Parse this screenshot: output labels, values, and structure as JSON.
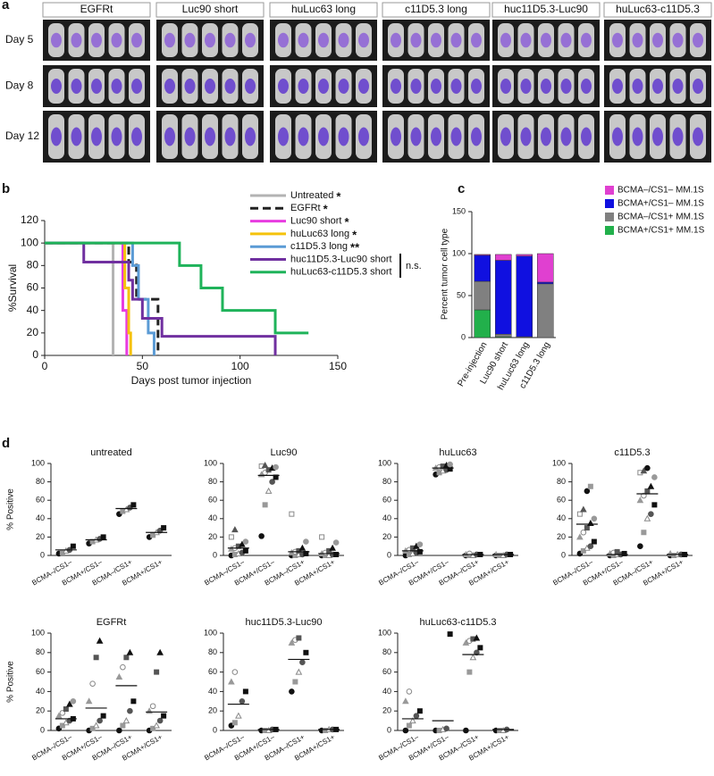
{
  "panel_labels": [
    "a",
    "b",
    "c",
    "d"
  ],
  "panel_a": {
    "columns": [
      "EGFRt",
      "Luc90 short",
      "huLuc63 long",
      "c11D5.3 long",
      "huc11D5.3-Luc90",
      "huLuc63-c11D5.3"
    ],
    "rows": [
      "Day 5",
      "Day 8",
      "Day 12"
    ]
  },
  "chart_data": [
    {
      "type": "step",
      "xlabel": "Days post tumor injection",
      "ylabel": "%Survival",
      "xlim": [
        0,
        150
      ],
      "xticks": [
        0,
        50,
        100,
        150
      ],
      "ylim": [
        0,
        120
      ],
      "yticks": [
        0,
        20,
        40,
        60,
        80,
        100,
        120
      ],
      "annotation": "n.s.",
      "series": [
        {
          "name": "Untreated",
          "sig": "*",
          "color": "#b3b3b3",
          "x": [
            0,
            35
          ],
          "values": [
            100,
            0
          ]
        },
        {
          "name": "EGFRt",
          "sig": "*",
          "color": "#222222",
          "dash": true,
          "x": [
            0,
            43,
            47,
            58
          ],
          "values": [
            100,
            83,
            50,
            0
          ]
        },
        {
          "name": "Luc90 short",
          "sig": "*",
          "color": "#e83ce0",
          "x": [
            0,
            40,
            42
          ],
          "values": [
            100,
            40,
            0
          ]
        },
        {
          "name": "huLuc63 long",
          "sig": "*",
          "color": "#f5c20b",
          "x": [
            0,
            41,
            43,
            44
          ],
          "values": [
            100,
            60,
            20,
            0
          ]
        },
        {
          "name": "c11D5.3 long",
          "sig": "**",
          "color": "#5b9bd5",
          "x": [
            0,
            45,
            48,
            53,
            56
          ],
          "values": [
            100,
            80,
            50,
            20,
            0
          ]
        },
        {
          "name": "huc11D5.3-Luc90 short",
          "color": "#7030a0",
          "x": [
            0,
            20,
            43,
            45,
            50,
            60,
            118
          ],
          "values": [
            100,
            83,
            67,
            50,
            33,
            17,
            0
          ]
        },
        {
          "name": "huLuc63-c11D5.3 short",
          "color": "#1fb35a",
          "x": [
            0,
            69,
            80,
            91,
            118,
            135
          ],
          "values": [
            100,
            80,
            60,
            40,
            20,
            20
          ]
        }
      ]
    },
    {
      "type": "stacked-bar",
      "ylabel": "Percent tumor cell type",
      "ylim": [
        0,
        150
      ],
      "yticks": [
        0,
        50,
        100,
        150
      ],
      "categories": [
        "Pre-injection",
        "Luc90 short",
        "huLuc63 long",
        "c11D5.3 long"
      ],
      "series": [
        {
          "name": "BCMA+/CS1+ MM.1S",
          "color": "#22b04b",
          "values": [
            33,
            1,
            0,
            0
          ]
        },
        {
          "name": "BCMA–/CS1+ MM.1S",
          "color": "#808080",
          "values": [
            34,
            3,
            1,
            64
          ]
        },
        {
          "name": "BCMA+/CS1– MM.1S",
          "color": "#1010e0",
          "values": [
            31,
            88,
            96,
            2
          ]
        },
        {
          "name": "BCMA–/CS1– MM.1S",
          "color": "#e040d0",
          "values": [
            1,
            7,
            2,
            34
          ]
        }
      ]
    },
    {
      "type": "strip",
      "title": "untreated",
      "ylabel": "% Positive",
      "ylim": [
        0,
        100
      ],
      "yticks": [
        0,
        20,
        40,
        60,
        80,
        100
      ],
      "categories": [
        "BCMA–/CS1–",
        "BCMA+/CS1–",
        "BCMA–/CS1+",
        "BCMA+/CS1+"
      ],
      "values": [
        [
          2,
          3,
          5,
          6,
          10
        ],
        [
          13,
          15,
          17,
          18,
          20
        ],
        [
          45,
          48,
          50,
          52,
          55
        ],
        [
          20,
          22,
          25,
          27,
          30
        ]
      ],
      "means": [
        6,
        17,
        51,
        25
      ]
    },
    {
      "type": "strip",
      "title": "Luc90",
      "ylim": [
        0,
        100
      ],
      "yticks": [
        0,
        20,
        40,
        60,
        80,
        100
      ],
      "categories": [
        "BCMA–/CS1–",
        "BCMA+/CS1–",
        "BCMA–/CS1+",
        "BCMA+/CS1+"
      ],
      "values": [
        [
          0,
          1,
          2,
          3,
          5,
          7,
          8,
          10,
          12,
          15,
          20,
          28
        ],
        [
          21,
          55,
          70,
          80,
          85,
          88,
          90,
          93,
          95,
          96,
          97,
          98
        ],
        [
          0,
          0,
          1,
          1,
          2,
          3,
          4,
          5,
          8,
          15,
          45
        ],
        [
          0,
          0,
          0,
          1,
          1,
          2,
          3,
          5,
          8,
          14,
          20
        ]
      ],
      "means": [
        8,
        87,
        4,
        2
      ]
    },
    {
      "type": "strip",
      "title": "huLuc63",
      "ylim": [
        0,
        100
      ],
      "yticks": [
        0,
        20,
        40,
        60,
        80,
        100
      ],
      "categories": [
        "BCMA–/CS1–",
        "BCMA+/CS1–",
        "BCMA–/CS1+",
        "BCMA+/CS1+"
      ],
      "values": [
        [
          0,
          1,
          2,
          3,
          4,
          5,
          6,
          8,
          10,
          12
        ],
        [
          88,
          90,
          92,
          93,
          94,
          95,
          96,
          97,
          98,
          99
        ],
        [
          0,
          0,
          0,
          1,
          1,
          1,
          2
        ],
        [
          0,
          0,
          0,
          1,
          1,
          1
        ]
      ],
      "means": [
        5,
        95,
        1,
        1
      ]
    },
    {
      "type": "strip",
      "title": "c11D5.3",
      "ylim": [
        0,
        100
      ],
      "yticks": [
        0,
        20,
        40,
        60,
        80,
        100
      ],
      "categories": [
        "BCMA–/CS1–",
        "BCMA+/CS1–",
        "BCMA–/CS1+",
        "BCMA+/CS1+"
      ],
      "values": [
        [
          2,
          5,
          8,
          10,
          15,
          20,
          25,
          30,
          35,
          40,
          45,
          50,
          70,
          75
        ],
        [
          0,
          0,
          1,
          1,
          2,
          2,
          3,
          4
        ],
        [
          10,
          25,
          40,
          45,
          55,
          60,
          65,
          70,
          75,
          85,
          90,
          92,
          95
        ],
        [
          0,
          0,
          1,
          1,
          1,
          2
        ]
      ],
      "means": [
        34,
        1,
        67,
        1
      ]
    },
    {
      "type": "strip",
      "title": "EGFRt",
      "ylabel": "% Positive",
      "ylim": [
        0,
        100
      ],
      "yticks": [
        0,
        20,
        40,
        60,
        80,
        100
      ],
      "categories": [
        "BCMA–/CS1–",
        "BCMA+/CS1–",
        "BCMA–/CS1+",
        "BCMA+/CS1+"
      ],
      "values": [
        [
          2,
          5,
          8,
          10,
          12,
          15,
          18,
          22,
          27,
          30
        ],
        [
          0,
          2,
          5,
          10,
          15,
          30,
          48,
          75,
          92
        ],
        [
          0,
          5,
          10,
          20,
          30,
          55,
          65,
          75,
          80
        ],
        [
          0,
          2,
          5,
          10,
          15,
          20,
          25,
          60,
          80
        ]
      ],
      "means": [
        12,
        23,
        46,
        19
      ]
    },
    {
      "type": "strip",
      "title": "huc11D5.3-Luc90",
      "ylim": [
        0,
        100
      ],
      "yticks": [
        0,
        20,
        40,
        60,
        80,
        100
      ],
      "categories": [
        "BCMA–/CS1–",
        "BCMA+/CS1–",
        "BCMA–/CS1+",
        "BCMA+/CS1+"
      ],
      "values": [
        [
          5,
          8,
          15,
          30,
          40,
          50,
          60
        ],
        [
          0,
          0,
          0,
          1,
          1
        ],
        [
          40,
          50,
          60,
          70,
          80,
          90,
          93,
          95
        ],
        [
          0,
          0,
          1,
          1,
          1
        ]
      ],
      "means": [
        27,
        1,
        73,
        1
      ]
    },
    {
      "type": "strip",
      "title": "huLuc63-c11D5.3",
      "ylim": [
        0,
        100
      ],
      "yticks": [
        0,
        20,
        40,
        60,
        80,
        100
      ],
      "categories": [
        "BCMA–/CS1–",
        "BCMA+/CS1–",
        "BCMA–/CS1+",
        "BCMA+/CS1+"
      ],
      "values": [
        [
          0,
          5,
          10,
          15,
          20,
          30,
          40
        ],
        [
          0,
          0,
          1,
          2,
          99
        ],
        [
          0,
          60,
          75,
          80,
          85,
          90,
          92,
          94,
          95
        ],
        [
          0,
          0,
          0,
          1
        ]
      ],
      "means": [
        12,
        10,
        78,
        1
      ]
    }
  ]
}
